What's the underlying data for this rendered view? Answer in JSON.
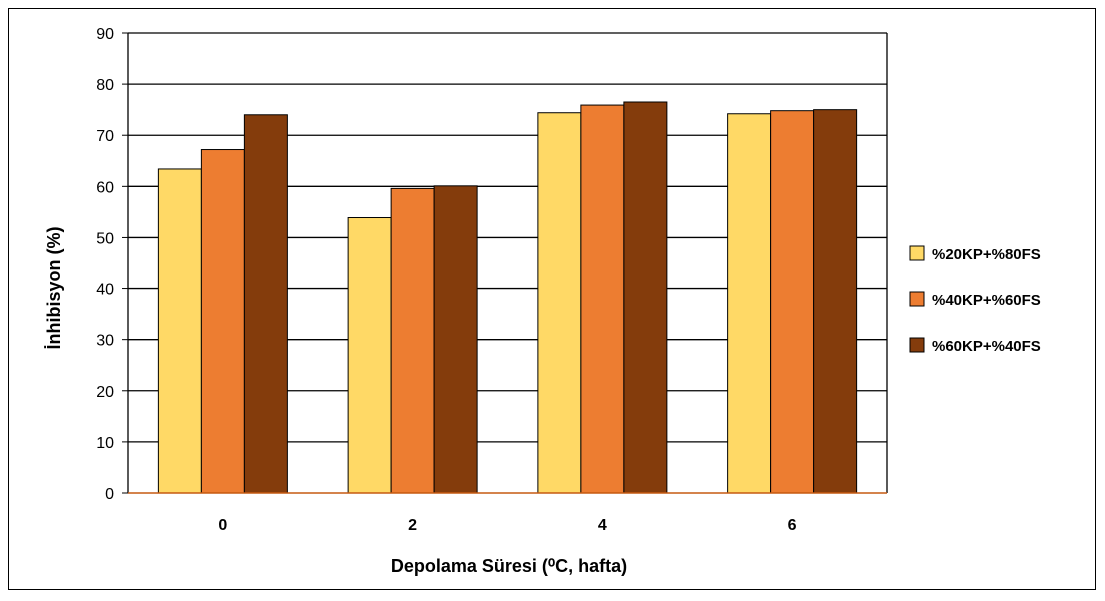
{
  "chart_data": {
    "type": "bar",
    "categories": [
      "0",
      "2",
      "4",
      "6"
    ],
    "series": [
      {
        "name": "%20KP+%80FS",
        "color": "#FFD966",
        "values": [
          63.4,
          53.9,
          74.4,
          74.2
        ]
      },
      {
        "name": "%40KP+%60FS",
        "color": "#ED7D31",
        "values": [
          67.2,
          59.6,
          75.9,
          74.8
        ]
      },
      {
        "name": "%60KP+%40FS",
        "color": "#843C0C",
        "values": [
          74.0,
          60.1,
          76.5,
          75.0
        ]
      }
    ],
    "title": "",
    "xlabel": "Depolama Süresi (⁰C, hafta)",
    "ylabel": "İnhibisyon (%)",
    "ylim": [
      0,
      90
    ],
    "yticks": [
      0,
      10,
      20,
      30,
      40,
      50,
      60,
      70,
      80,
      90
    ],
    "grid": true,
    "legend_position": "right"
  }
}
